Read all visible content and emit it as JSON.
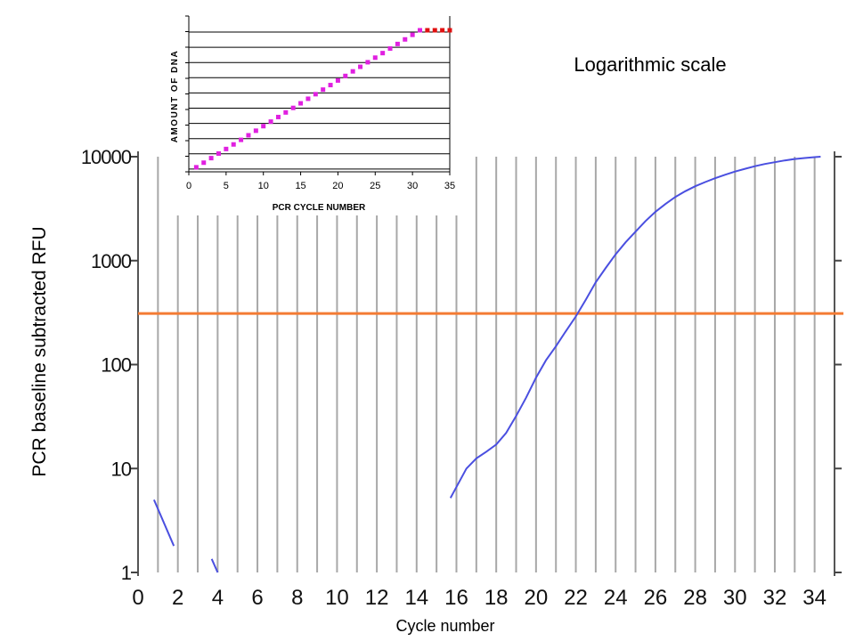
{
  "slide": {
    "title": "Logarithmic scale"
  },
  "chart_data": [
    {
      "type": "line",
      "title": "",
      "xlabel": "Cycle number",
      "ylabel": "PCR baseline subtracted RFU",
      "x_scale": "linear",
      "y_scale": "log",
      "xlim": [
        0,
        35
      ],
      "ylim": [
        1,
        10000
      ],
      "x_ticks": [
        "0",
        "2",
        "4",
        "6",
        "8",
        "10",
        "12",
        "14",
        "16",
        "18",
        "20",
        "22",
        "24",
        "26",
        "28",
        "30",
        "32",
        "34"
      ],
      "y_ticks": [
        "1",
        "10",
        "100",
        "1000",
        "10000"
      ],
      "grid": "vertical lines at every cycle",
      "threshold": {
        "y": 310,
        "color": "#f47b33"
      },
      "series": [
        {
          "color": "#4a4fe0",
          "segments": [
            [
              [
                0.8,
                5
              ],
              [
                1.8,
                1.8
              ]
            ],
            [
              [
                3.7,
                1.35
              ],
              [
                4.0,
                1.0
              ]
            ],
            [
              [
                15.7,
                5.2
              ],
              [
                16.5,
                10
              ],
              [
                17.0,
                12.5
              ],
              [
                17.5,
                14.5
              ],
              [
                18.0,
                17
              ],
              [
                18.5,
                22
              ],
              [
                19.0,
                32
              ],
              [
                19.5,
                48
              ],
              [
                20.0,
                75
              ],
              [
                20.5,
                110
              ],
              [
                21.0,
                150
              ],
              [
                21.5,
                210
              ],
              [
                22.0,
                290
              ],
              [
                22.5,
                420
              ],
              [
                23.0,
                620
              ],
              [
                23.5,
                850
              ],
              [
                24.0,
                1150
              ],
              [
                24.5,
                1500
              ],
              [
                25.0,
                1900
              ],
              [
                25.5,
                2400
              ],
              [
                26.0,
                2950
              ],
              [
                26.5,
                3500
              ],
              [
                27.0,
                4100
              ],
              [
                27.5,
                4650
              ],
              [
                28.0,
                5200
              ],
              [
                28.5,
                5700
              ],
              [
                29.0,
                6200
              ],
              [
                29.5,
                6700
              ],
              [
                30.0,
                7200
              ],
              [
                30.5,
                7650
              ],
              [
                31.0,
                8100
              ],
              [
                31.5,
                8500
              ],
              [
                32.0,
                8850
              ],
              [
                32.5,
                9200
              ],
              [
                33.0,
                9500
              ],
              [
                33.5,
                9700
              ],
              [
                34.0,
                9900
              ],
              [
                34.3,
                10000
              ]
            ]
          ]
        }
      ]
    },
    {
      "type": "scatter",
      "title": "",
      "xlabel": "PCR CYCLE NUMBER",
      "ylabel": "AMOUNT OF DNA",
      "xlim": [
        0,
        35
      ],
      "x_ticks": [
        "0",
        "5",
        "10",
        "15",
        "20",
        "25",
        "30",
        "35"
      ],
      "grid": "horizontal lines",
      "series": [
        {
          "color": "#e020e0",
          "x": [
            1,
            2,
            3,
            4,
            5,
            6,
            7,
            8,
            9,
            10,
            11,
            12,
            13,
            14,
            15,
            16,
            17,
            18,
            19,
            20,
            21,
            22,
            23,
            24,
            25,
            26,
            27,
            28,
            29,
            30,
            31
          ],
          "y": [
            1,
            2,
            3,
            4,
            5,
            6,
            7,
            8,
            9,
            10,
            11,
            12,
            13,
            14,
            15,
            16,
            17,
            18,
            19,
            20,
            21,
            22,
            23,
            24,
            25,
            26,
            27,
            28,
            29,
            30,
            31
          ]
        },
        {
          "color": "#e01010",
          "x": [
            32,
            33,
            34,
            35
          ],
          "y": [
            31,
            31,
            31,
            31
          ]
        }
      ]
    }
  ]
}
